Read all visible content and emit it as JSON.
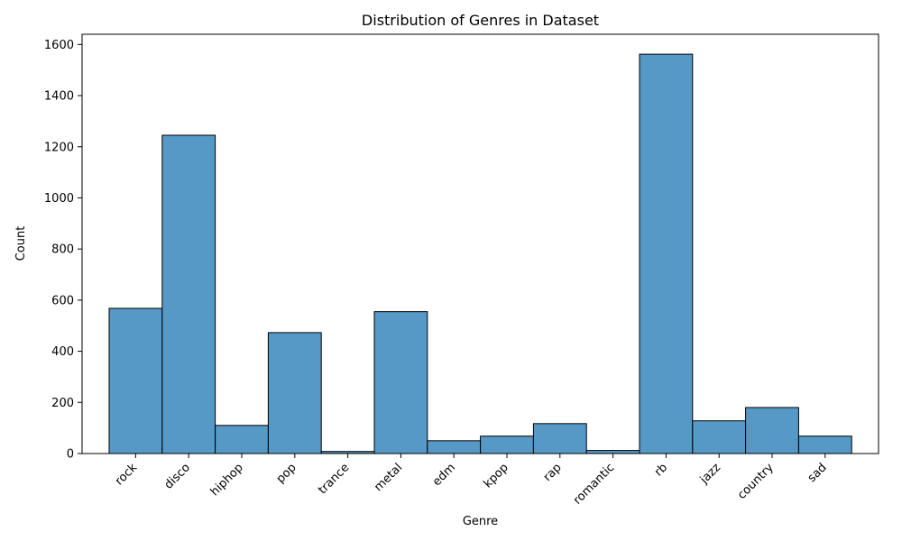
{
  "chart_data": {
    "type": "bar",
    "title": "Distribution of Genres in Dataset",
    "xlabel": "Genre",
    "ylabel": "Count",
    "categories": [
      "rock",
      "disco",
      "hiphop",
      "pop",
      "trance",
      "metal",
      "edm",
      "kpop",
      "rap",
      "romantic",
      "rb",
      "jazz",
      "country",
      "sad"
    ],
    "values": [
      568,
      1245,
      110,
      473,
      8,
      555,
      50,
      68,
      117,
      12,
      1562,
      128,
      180,
      68
    ],
    "ylim": [
      0,
      1640
    ],
    "yticks": [
      0,
      200,
      400,
      600,
      800,
      1000,
      1200,
      1400,
      1600
    ],
    "grid": false,
    "colors": {
      "bar_fill": "#5698c6",
      "bar_edge": "#000000",
      "axis": "#000000"
    }
  }
}
